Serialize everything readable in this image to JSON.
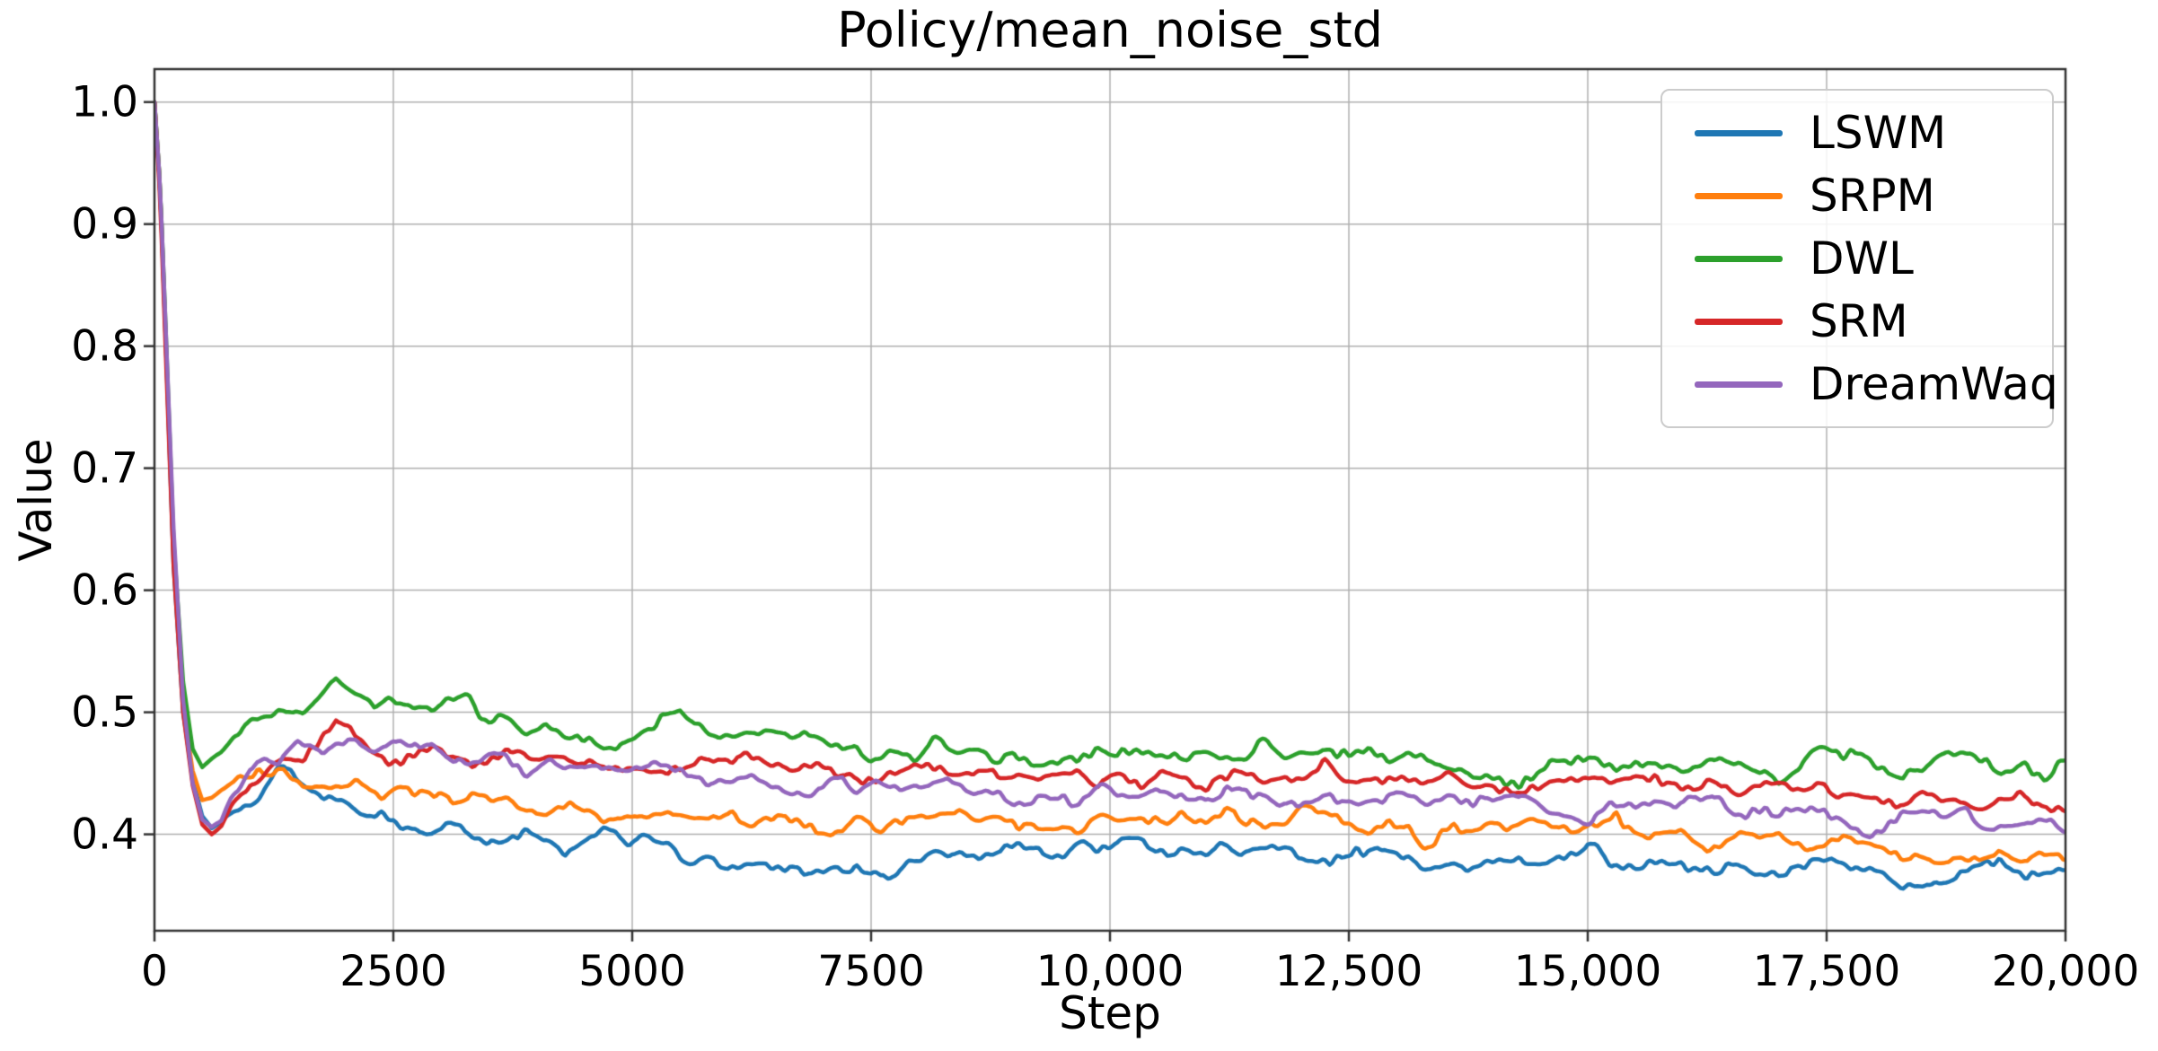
{
  "figure": {
    "background": "#ffffff",
    "grid_color": "#b0b0b0",
    "spine_color": "#333333"
  },
  "chart_data": {
    "type": "line",
    "title": "Policy/mean_noise_std",
    "xlabel": "Step",
    "ylabel": "Value",
    "xlim": [
      0,
      20000
    ],
    "ylim": [
      0.321,
      1.027
    ],
    "grid": true,
    "legend_position": "upper right",
    "x_ticks": [
      0,
      2500,
      5000,
      7500,
      10000,
      12500,
      15000,
      17500,
      20000
    ],
    "x_tick_labels": [
      "0",
      "2500",
      "5000",
      "7500",
      "10,000",
      "12,500",
      "15,000",
      "17,500",
      "20,000"
    ],
    "y_ticks": [
      0.4,
      0.5,
      0.6,
      0.7,
      0.8,
      0.9,
      1.0
    ],
    "y_tick_labels": [
      "0.4",
      "0.5",
      "0.6",
      "0.7",
      "0.8",
      "0.9",
      "1.0"
    ],
    "x": [
      0,
      60,
      120,
      200,
      300,
      400,
      500,
      600,
      700,
      800,
      1000,
      1200,
      1350,
      1500,
      1700,
      1900,
      2100,
      2300,
      2500,
      2700,
      2900,
      3100,
      3300,
      3500,
      3700,
      3900,
      4100,
      4300,
      4500,
      4700,
      5000,
      5200,
      5500,
      5800,
      6100,
      6400,
      6700,
      7000,
      7200,
      7400,
      7600,
      7800,
      8000,
      8300,
      8600,
      9000,
      9300,
      9600,
      10000,
      10300,
      10600,
      11000,
      11300,
      11600,
      12000,
      12300,
      12600,
      13000,
      13300,
      13600,
      14000,
      14300,
      14600,
      15000,
      15300,
      15600,
      16000,
      16300,
      16600,
      17000,
      17300,
      17600,
      18000,
      18300,
      18600,
      19000,
      19300,
      19600,
      20000
    ],
    "series": [
      {
        "name": "LSWM",
        "color": "#1f77b4",
        "y": [
          1.0,
          0.93,
          0.8,
          0.62,
          0.5,
          0.445,
          0.415,
          0.405,
          0.41,
          0.415,
          0.425,
          0.44,
          0.452,
          0.445,
          0.43,
          0.425,
          0.42,
          0.412,
          0.408,
          0.4,
          0.398,
          0.402,
          0.398,
          0.393,
          0.396,
          0.4,
          0.398,
          0.386,
          0.394,
          0.4,
          0.398,
          0.392,
          0.385,
          0.378,
          0.372,
          0.375,
          0.37,
          0.368,
          0.373,
          0.378,
          0.371,
          0.375,
          0.379,
          0.384,
          0.387,
          0.389,
          0.383,
          0.385,
          0.389,
          0.393,
          0.388,
          0.389,
          0.392,
          0.388,
          0.386,
          0.373,
          0.388,
          0.389,
          0.376,
          0.373,
          0.372,
          0.378,
          0.381,
          0.39,
          0.379,
          0.373,
          0.371,
          0.374,
          0.37,
          0.368,
          0.372,
          0.374,
          0.366,
          0.361,
          0.358,
          0.372,
          0.378,
          0.37,
          0.373
        ]
      },
      {
        "name": "SRPM",
        "color": "#ff7f0e",
        "y": [
          1.0,
          0.93,
          0.8,
          0.63,
          0.505,
          0.452,
          0.428,
          0.43,
          0.436,
          0.44,
          0.445,
          0.45,
          0.455,
          0.447,
          0.443,
          0.44,
          0.442,
          0.437,
          0.434,
          0.43,
          0.432,
          0.428,
          0.43,
          0.425,
          0.428,
          0.422,
          0.42,
          0.424,
          0.418,
          0.415,
          0.413,
          0.418,
          0.421,
          0.415,
          0.412,
          0.409,
          0.412,
          0.408,
          0.405,
          0.41,
          0.403,
          0.408,
          0.412,
          0.416,
          0.412,
          0.409,
          0.404,
          0.407,
          0.411,
          0.413,
          0.409,
          0.412,
          0.421,
          0.409,
          0.415,
          0.412,
          0.408,
          0.404,
          0.394,
          0.401,
          0.406,
          0.409,
          0.412,
          0.404,
          0.411,
          0.401,
          0.399,
          0.39,
          0.4,
          0.397,
          0.39,
          0.396,
          0.39,
          0.387,
          0.384,
          0.381,
          0.391,
          0.384,
          0.386
        ]
      },
      {
        "name": "DWL",
        "color": "#2ca02c",
        "y": [
          1.0,
          0.93,
          0.81,
          0.64,
          0.525,
          0.47,
          0.455,
          0.462,
          0.468,
          0.475,
          0.49,
          0.5,
          0.508,
          0.503,
          0.512,
          0.528,
          0.512,
          0.502,
          0.512,
          0.505,
          0.5,
          0.508,
          0.512,
          0.496,
          0.492,
          0.487,
          0.492,
          0.483,
          0.478,
          0.475,
          0.481,
          0.487,
          0.5,
          0.482,
          0.476,
          0.481,
          0.476,
          0.477,
          0.472,
          0.468,
          0.465,
          0.467,
          0.469,
          0.473,
          0.466,
          0.466,
          0.461,
          0.463,
          0.466,
          0.471,
          0.466,
          0.461,
          0.466,
          0.471,
          0.466,
          0.461,
          0.466,
          0.463,
          0.459,
          0.455,
          0.449,
          0.441,
          0.456,
          0.461,
          0.456,
          0.461,
          0.456,
          0.461,
          0.453,
          0.449,
          0.461,
          0.471,
          0.459,
          0.453,
          0.456,
          0.463,
          0.456,
          0.45,
          0.456
        ]
      },
      {
        "name": "SRM",
        "color": "#d62728",
        "y": [
          1.0,
          0.92,
          0.79,
          0.62,
          0.5,
          0.44,
          0.408,
          0.4,
          0.406,
          0.42,
          0.44,
          0.452,
          0.458,
          0.462,
          0.472,
          0.497,
          0.482,
          0.468,
          0.462,
          0.468,
          0.472,
          0.465,
          0.46,
          0.464,
          0.468,
          0.458,
          0.462,
          0.457,
          0.452,
          0.458,
          0.455,
          0.452,
          0.456,
          0.461,
          0.468,
          0.456,
          0.455,
          0.459,
          0.452,
          0.448,
          0.447,
          0.451,
          0.453,
          0.448,
          0.452,
          0.448,
          0.445,
          0.448,
          0.445,
          0.441,
          0.446,
          0.441,
          0.448,
          0.441,
          0.446,
          0.455,
          0.448,
          0.445,
          0.441,
          0.446,
          0.441,
          0.436,
          0.441,
          0.441,
          0.446,
          0.441,
          0.436,
          0.441,
          0.436,
          0.441,
          0.436,
          0.431,
          0.426,
          0.421,
          0.431,
          0.426,
          0.431,
          0.426,
          0.422
        ]
      },
      {
        "name": "DreamWaq",
        "color": "#9467bd",
        "y": [
          1.0,
          0.93,
          0.81,
          0.65,
          0.51,
          0.442,
          0.412,
          0.406,
          0.412,
          0.43,
          0.452,
          0.458,
          0.462,
          0.468,
          0.465,
          0.47,
          0.474,
          0.468,
          0.476,
          0.466,
          0.47,
          0.464,
          0.459,
          0.464,
          0.459,
          0.452,
          0.459,
          0.455,
          0.449,
          0.455,
          0.457,
          0.461,
          0.449,
          0.441,
          0.446,
          0.439,
          0.434,
          0.441,
          0.446,
          0.439,
          0.441,
          0.435,
          0.437,
          0.441,
          0.434,
          0.429,
          0.435,
          0.429,
          0.435,
          0.429,
          0.434,
          0.429,
          0.441,
          0.429,
          0.424,
          0.429,
          0.419,
          0.429,
          0.424,
          0.429,
          0.424,
          0.429,
          0.419,
          0.414,
          0.424,
          0.429,
          0.424,
          0.429,
          0.419,
          0.424,
          0.419,
          0.414,
          0.404,
          0.414,
          0.419,
          0.414,
          0.409,
          0.414,
          0.408
        ]
      }
    ]
  }
}
